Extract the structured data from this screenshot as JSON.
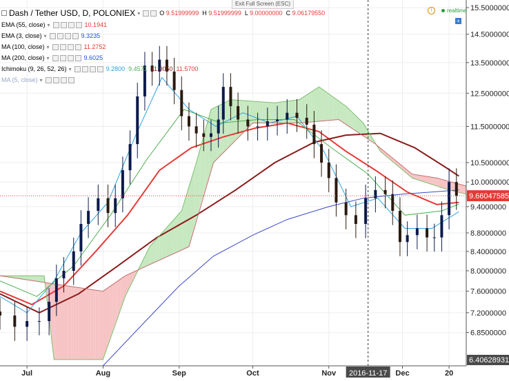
{
  "header": {
    "exit_full_screen": "Exit Full Screen (ESC)",
    "symbol": "Dash / Tether USD, D, POLONIEX",
    "ohlc": [
      {
        "label": "O",
        "value": "9.51999999"
      },
      {
        "label": "H",
        "value": "9.51999999"
      },
      {
        "label": "L",
        "value": "9.00000000"
      },
      {
        "label": "C",
        "value": "9.06179550"
      }
    ],
    "realtime_label": "realtime"
  },
  "indicators": [
    {
      "name": "EMA (55, close)",
      "values": [
        "10.1941"
      ],
      "colors": [
        "#e53935"
      ]
    },
    {
      "name": "EMA (3, close)",
      "values": [
        "9.3235"
      ],
      "colors": [
        "#1e50d8"
      ]
    },
    {
      "name": "MA (100, close)",
      "values": [
        "11.2752"
      ],
      "colors": [
        "#e53935"
      ]
    },
    {
      "name": "MA (200, close)",
      "values": [
        "9.6025"
      ],
      "colors": [
        "#1e50d8"
      ]
    },
    {
      "name": "Ichimoku (9, 26, 52, 26)",
      "values": [
        "9.2800",
        "9.4571",
        "11.0050",
        "11.5700"
      ],
      "colors": [
        "#2aa3e0",
        "#4caf50",
        "#8b1a1a",
        "#e53935"
      ]
    },
    {
      "name": "MA (5, close)",
      "values": [],
      "colors": []
    }
  ],
  "price_labels": {
    "last": "9.66047585",
    "bottom": "6.40628931"
  },
  "crosshair": {
    "date_label": "2016-11-17"
  },
  "colors": {
    "candle_up": "#0c1a4a",
    "candle_down": "#2a1a10",
    "ema55": "#e53935",
    "ma100": "#8b1a1a",
    "ma200": "#3d48c9",
    "tenkan": "#2aa3e0",
    "kijun": "#4caf50",
    "cloud_bull": "#c6e8c0",
    "cloud_bear": "#f6c4c4",
    "last_price_bg": "#e53935"
  },
  "chart_data": {
    "type": "candlestick",
    "title": "Dash / Tether USD, D, POLONIEX",
    "y_scale": "log",
    "ylim": [
      6.3,
      15.8
    ],
    "y_ticks": [
      "15.5000000",
      "14.5000000",
      "13.5000000",
      "12.5000000",
      "11.5000000",
      "10.5000000",
      "10.0000000",
      "9.4000000",
      "8.8000000",
      "8.4000000",
      "8.0000000",
      "7.6000000",
      "7.2000000",
      "6.8500000"
    ],
    "x_ticks": [
      {
        "label": "Jul",
        "date": "2016-07-01"
      },
      {
        "label": "Aug",
        "date": "2016-08-01"
      },
      {
        "label": "Sep",
        "date": "2016-09-01"
      },
      {
        "label": "Oct",
        "date": "2016-10-01"
      },
      {
        "label": "Nov",
        "date": "2016-11-01"
      },
      {
        "label": "Dec",
        "date": "2016-12-01"
      },
      {
        "label": "20",
        "date": "2016-12-20"
      }
    ],
    "x_range": [
      "2016-06-20",
      "2016-12-27"
    ],
    "grid": true,
    "legend": "top-left",
    "closes": [
      {
        "date": "2016-06-20",
        "close": 7.15
      },
      {
        "date": "2016-06-26",
        "close": 6.95
      },
      {
        "date": "2016-07-01",
        "close": 7.05
      },
      {
        "date": "2016-07-06",
        "close": 7.05
      },
      {
        "date": "2016-07-10",
        "close": 7.4
      },
      {
        "date": "2016-07-13",
        "close": 7.85
      },
      {
        "date": "2016-07-16",
        "close": 8.0
      },
      {
        "date": "2016-07-20",
        "close": 8.4
      },
      {
        "date": "2016-07-23",
        "close": 9.0
      },
      {
        "date": "2016-07-26",
        "close": 9.3
      },
      {
        "date": "2016-07-30",
        "close": 9.6
      },
      {
        "date": "2016-08-03",
        "close": 9.25
      },
      {
        "date": "2016-08-06",
        "close": 9.6
      },
      {
        "date": "2016-08-09",
        "close": 10.3
      },
      {
        "date": "2016-08-12",
        "close": 11.0
      },
      {
        "date": "2016-08-15",
        "close": 12.4
      },
      {
        "date": "2016-08-18",
        "close": 13.4
      },
      {
        "date": "2016-08-21",
        "close": 13.2
      },
      {
        "date": "2016-08-24",
        "close": 13.6
      },
      {
        "date": "2016-08-27",
        "close": 13.2
      },
      {
        "date": "2016-08-30",
        "close": 12.6
      },
      {
        "date": "2016-09-02",
        "close": 11.8
      },
      {
        "date": "2016-09-05",
        "close": 11.5
      },
      {
        "date": "2016-09-08",
        "close": 11.3
      },
      {
        "date": "2016-09-11",
        "close": 11.2
      },
      {
        "date": "2016-09-14",
        "close": 11.3
      },
      {
        "date": "2016-09-17",
        "close": 11.7
      },
      {
        "date": "2016-09-19",
        "close": 12.7
      },
      {
        "date": "2016-09-22",
        "close": 12.1
      },
      {
        "date": "2016-09-25",
        "close": 11.7
      },
      {
        "date": "2016-09-29",
        "close": 11.5
      },
      {
        "date": "2016-10-03",
        "close": 11.5
      },
      {
        "date": "2016-10-07",
        "close": 11.65
      },
      {
        "date": "2016-10-11",
        "close": 11.7
      },
      {
        "date": "2016-10-15",
        "close": 11.9
      },
      {
        "date": "2016-10-19",
        "close": 11.75
      },
      {
        "date": "2016-10-23",
        "close": 11.55
      },
      {
        "date": "2016-10-26",
        "close": 11.0
      },
      {
        "date": "2016-10-29",
        "close": 10.5
      },
      {
        "date": "2016-11-01",
        "close": 10.1
      },
      {
        "date": "2016-11-04",
        "close": 9.5
      },
      {
        "date": "2016-11-08",
        "close": 9.2
      },
      {
        "date": "2016-11-12",
        "close": 9.0
      },
      {
        "date": "2016-11-16",
        "close": 9.6
      },
      {
        "date": "2016-11-20",
        "close": 9.8
      },
      {
        "date": "2016-11-24",
        "close": 9.7
      },
      {
        "date": "2016-11-27",
        "close": 9.3
      },
      {
        "date": "2016-11-30",
        "close": 8.6
      },
      {
        "date": "2016-12-03",
        "close": 8.75
      },
      {
        "date": "2016-12-07",
        "close": 8.9
      },
      {
        "date": "2016-12-11",
        "close": 8.7
      },
      {
        "date": "2016-12-14",
        "close": 8.7
      },
      {
        "date": "2016-12-17",
        "close": 9.2
      },
      {
        "date": "2016-12-20",
        "close": 10.0
      },
      {
        "date": "2016-12-23",
        "close": 9.66
      }
    ],
    "series": [
      {
        "name": "EMA (55, close)",
        "points": [
          {
            "date": "2016-06-20",
            "value": 7.6
          },
          {
            "date": "2016-07-03",
            "value": 7.35
          },
          {
            "date": "2016-07-16",
            "value": 7.7
          },
          {
            "date": "2016-07-29",
            "value": 8.4
          },
          {
            "date": "2016-08-11",
            "value": 9.2
          },
          {
            "date": "2016-08-24",
            "value": 10.3
          },
          {
            "date": "2016-09-06",
            "value": 10.9
          },
          {
            "date": "2016-09-19",
            "value": 11.2
          },
          {
            "date": "2016-10-02",
            "value": 11.45
          },
          {
            "date": "2016-10-15",
            "value": 11.6
          },
          {
            "date": "2016-10-28",
            "value": 11.35
          },
          {
            "date": "2016-11-08",
            "value": 10.8
          },
          {
            "date": "2016-11-20",
            "value": 10.3
          },
          {
            "date": "2016-12-03",
            "value": 9.75
          },
          {
            "date": "2016-12-15",
            "value": 9.45
          },
          {
            "date": "2016-12-24",
            "value": 9.5
          }
        ]
      },
      {
        "name": "MA (100, close)",
        "points": [
          {
            "date": "2016-06-20",
            "value": 7.55
          },
          {
            "date": "2016-07-06",
            "value": 7.2
          },
          {
            "date": "2016-07-22",
            "value": 7.55
          },
          {
            "date": "2016-08-07",
            "value": 8.1
          },
          {
            "date": "2016-08-23",
            "value": 8.7
          },
          {
            "date": "2016-09-08",
            "value": 9.2
          },
          {
            "date": "2016-09-24",
            "value": 9.8
          },
          {
            "date": "2016-10-10",
            "value": 10.5
          },
          {
            "date": "2016-10-26",
            "value": 11.05
          },
          {
            "date": "2016-11-08",
            "value": 11.25
          },
          {
            "date": "2016-11-22",
            "value": 11.3
          },
          {
            "date": "2016-12-06",
            "value": 10.9
          },
          {
            "date": "2016-12-18",
            "value": 10.4
          },
          {
            "date": "2016-12-24",
            "value": 10.15
          }
        ]
      },
      {
        "name": "MA (200, close)",
        "points": [
          {
            "date": "2016-08-01",
            "value": 6.3
          },
          {
            "date": "2016-08-15",
            "value": 6.9
          },
          {
            "date": "2016-09-01",
            "value": 7.7
          },
          {
            "date": "2016-09-15",
            "value": 8.3
          },
          {
            "date": "2016-10-01",
            "value": 8.75
          },
          {
            "date": "2016-10-15",
            "value": 9.1
          },
          {
            "date": "2016-11-01",
            "value": 9.4
          },
          {
            "date": "2016-11-15",
            "value": 9.6
          },
          {
            "date": "2016-12-01",
            "value": 9.7
          },
          {
            "date": "2016-12-24",
            "value": 9.8
          }
        ]
      },
      {
        "name": "Tenkan",
        "points": [
          {
            "date": "2016-06-20",
            "value": 7.5
          },
          {
            "date": "2016-07-01",
            "value": 7.2
          },
          {
            "date": "2016-07-12",
            "value": 7.8
          },
          {
            "date": "2016-07-23",
            "value": 8.8
          },
          {
            "date": "2016-08-03",
            "value": 9.5
          },
          {
            "date": "2016-08-14",
            "value": 11.2
          },
          {
            "date": "2016-08-25",
            "value": 13.0
          },
          {
            "date": "2016-09-05",
            "value": 12.0
          },
          {
            "date": "2016-09-16",
            "value": 11.5
          },
          {
            "date": "2016-09-27",
            "value": 11.9
          },
          {
            "date": "2016-10-08",
            "value": 11.6
          },
          {
            "date": "2016-10-19",
            "value": 11.8
          },
          {
            "date": "2016-10-30",
            "value": 10.8
          },
          {
            "date": "2016-11-10",
            "value": 9.4
          },
          {
            "date": "2016-11-21",
            "value": 9.6
          },
          {
            "date": "2016-12-02",
            "value": 8.9
          },
          {
            "date": "2016-12-13",
            "value": 8.9
          },
          {
            "date": "2016-12-24",
            "value": 9.28
          }
        ]
      },
      {
        "name": "Kijun",
        "points": [
          {
            "date": "2016-06-20",
            "value": 7.8
          },
          {
            "date": "2016-07-05",
            "value": 7.5
          },
          {
            "date": "2016-07-20",
            "value": 8.1
          },
          {
            "date": "2016-08-04",
            "value": 9.2
          },
          {
            "date": "2016-08-19",
            "value": 10.6
          },
          {
            "date": "2016-09-03",
            "value": 12.0
          },
          {
            "date": "2016-09-18",
            "value": 11.6
          },
          {
            "date": "2016-10-03",
            "value": 11.7
          },
          {
            "date": "2016-10-18",
            "value": 11.7
          },
          {
            "date": "2016-11-02",
            "value": 10.9
          },
          {
            "date": "2016-11-17",
            "value": 10.2
          },
          {
            "date": "2016-12-02",
            "value": 9.2
          },
          {
            "date": "2016-12-17",
            "value": 9.3
          },
          {
            "date": "2016-12-24",
            "value": 9.46
          }
        ]
      },
      {
        "name": "Senkou A",
        "points": [
          {
            "date": "2016-06-20",
            "value": 7.9
          },
          {
            "date": "2016-07-08",
            "value": 7.9
          },
          {
            "date": "2016-07-12",
            "value": 6.4
          },
          {
            "date": "2016-08-01",
            "value": 6.4
          },
          {
            "date": "2016-08-10",
            "value": 7.5
          },
          {
            "date": "2016-08-20",
            "value": 8.5
          },
          {
            "date": "2016-09-02",
            "value": 9.3
          },
          {
            "date": "2016-09-08",
            "value": 10.5
          },
          {
            "date": "2016-09-14",
            "value": 12.0
          },
          {
            "date": "2016-09-22",
            "value": 12.3
          },
          {
            "date": "2016-10-10",
            "value": 12.2
          },
          {
            "date": "2016-10-20",
            "value": 12.3
          },
          {
            "date": "2016-10-28",
            "value": 12.7
          },
          {
            "date": "2016-11-08",
            "value": 12.1
          },
          {
            "date": "2016-11-15",
            "value": 11.6
          },
          {
            "date": "2016-11-22",
            "value": 10.8
          },
          {
            "date": "2016-12-05",
            "value": 10.1
          },
          {
            "date": "2016-12-20",
            "value": 9.8
          },
          {
            "date": "2016-12-27",
            "value": 9.7
          }
        ]
      },
      {
        "name": "Senkou B",
        "points": [
          {
            "date": "2016-06-20",
            "value": 7.9
          },
          {
            "date": "2016-08-01",
            "value": 7.6
          },
          {
            "date": "2016-08-10",
            "value": 7.9
          },
          {
            "date": "2016-09-05",
            "value": 8.5
          },
          {
            "date": "2016-09-15",
            "value": 10.5
          },
          {
            "date": "2016-10-01",
            "value": 11.6
          },
          {
            "date": "2016-10-20",
            "value": 11.6
          },
          {
            "date": "2016-11-05",
            "value": 11.7
          },
          {
            "date": "2016-11-20",
            "value": 11.0
          },
          {
            "date": "2016-12-05",
            "value": 10.2
          },
          {
            "date": "2016-12-15",
            "value": 10.1
          },
          {
            "date": "2016-12-27",
            "value": 9.9
          }
        ]
      }
    ]
  }
}
